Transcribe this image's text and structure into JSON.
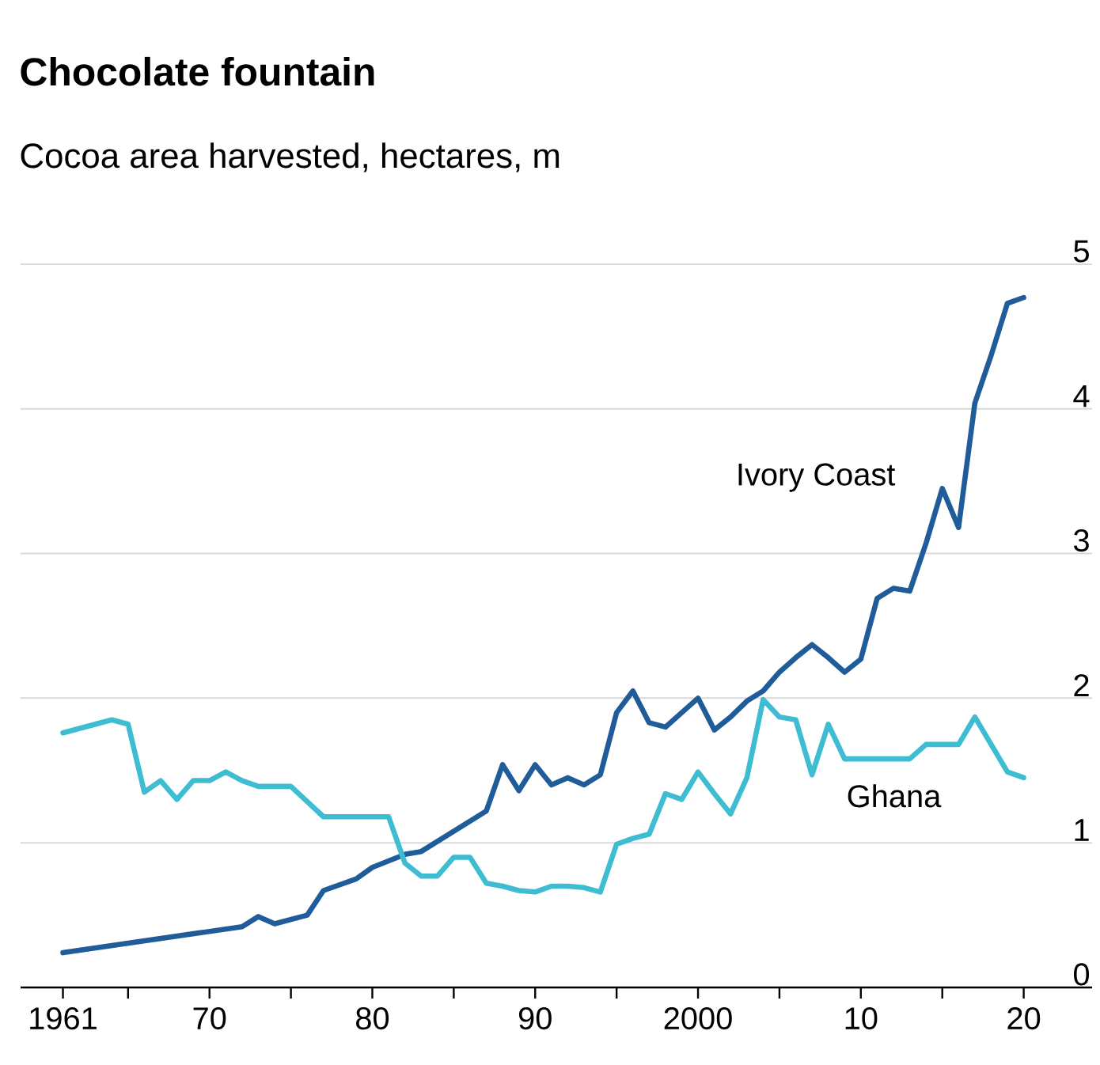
{
  "chart_data": {
    "type": "line",
    "title": "Chocolate fountain",
    "subtitle": "Cocoa area harvested, hectares, m",
    "xlim": [
      1958.4,
      2024.2
    ],
    "xticks": [
      1961,
      {
        "value": 1965,
        "label": null
      },
      {
        "value": 1970,
        "label": "70"
      },
      {
        "value": 1975,
        "label": null
      },
      {
        "value": 1980,
        "label": "80"
      },
      {
        "value": 1985,
        "label": null
      },
      {
        "value": 1990,
        "label": "90"
      },
      {
        "value": 1995,
        "label": null
      },
      2000,
      {
        "value": 2005,
        "label": null
      },
      {
        "value": 2010,
        "label": "10"
      },
      {
        "value": 2015,
        "label": null
      },
      {
        "value": 2020,
        "label": "20"
      }
    ],
    "ylim": [
      0,
      5
    ],
    "yticks": [
      0,
      1,
      2,
      3,
      4,
      5
    ],
    "grid": "y",
    "series": [
      {
        "name": "Ivory Coast",
        "color": "#1f5c99",
        "x": [
          1961,
          1972,
          1973,
          1974,
          1976,
          1977,
          1979,
          1980,
          1982,
          1983,
          1985,
          1987,
          1988,
          1989,
          1990,
          1991,
          1992,
          1993,
          1994,
          1995,
          1996,
          1997,
          1998,
          1999,
          2000,
          2001,
          2002,
          2003,
          2004,
          2005,
          2006,
          2007,
          2008,
          2009,
          2010,
          2011,
          2012,
          2013,
          2014,
          2015,
          2016,
          2017,
          2018,
          2019,
          2020
        ],
        "values": [
          0.24,
          0.42,
          0.49,
          0.44,
          0.5,
          0.67,
          0.75,
          0.83,
          0.92,
          0.94,
          1.08,
          1.22,
          1.54,
          1.36,
          1.54,
          1.4,
          1.45,
          1.4,
          1.47,
          1.9,
          2.05,
          1.83,
          1.8,
          1.9,
          2.0,
          1.78,
          1.87,
          1.98,
          2.05,
          2.18,
          2.28,
          2.37,
          2.28,
          2.18,
          2.27,
          2.69,
          2.76,
          2.74,
          3.07,
          3.45,
          3.18,
          4.04,
          4.37,
          4.73,
          4.77
        ]
      },
      {
        "name": "Ghana",
        "color": "#3ebcd2",
        "x": [
          1961,
          1963,
          1964,
          1965,
          1966,
          1967,
          1968,
          1969,
          1970,
          1971,
          1972,
          1973,
          1975,
          1977,
          1980,
          1981,
          1982,
          1983,
          1984,
          1985,
          1986,
          1987,
          1988,
          1989,
          1990,
          1991,
          1992,
          1993,
          1994,
          1995,
          1996,
          1997,
          1998,
          1999,
          2000,
          2001,
          2002,
          2003,
          2004,
          2005,
          2006,
          2007,
          2008,
          2009,
          2010,
          2011,
          2012,
          2013,
          2014,
          2015,
          2016,
          2017,
          2018,
          2019,
          2020
        ],
        "values": [
          1.76,
          1.82,
          1.85,
          1.82,
          1.35,
          1.43,
          1.3,
          1.43,
          1.43,
          1.49,
          1.43,
          1.39,
          1.39,
          1.18,
          1.18,
          1.18,
          0.86,
          0.77,
          0.77,
          0.9,
          0.9,
          0.72,
          0.7,
          0.67,
          0.66,
          0.7,
          0.7,
          0.69,
          0.66,
          0.99,
          1.03,
          1.06,
          1.34,
          1.3,
          1.49,
          1.34,
          1.2,
          1.45,
          1.99,
          1.87,
          1.85,
          1.47,
          1.82,
          1.58,
          1.58,
          1.58,
          1.58,
          1.58,
          1.68,
          1.68,
          1.68,
          1.87,
          1.68,
          1.49,
          1.45
        ]
      }
    ]
  }
}
